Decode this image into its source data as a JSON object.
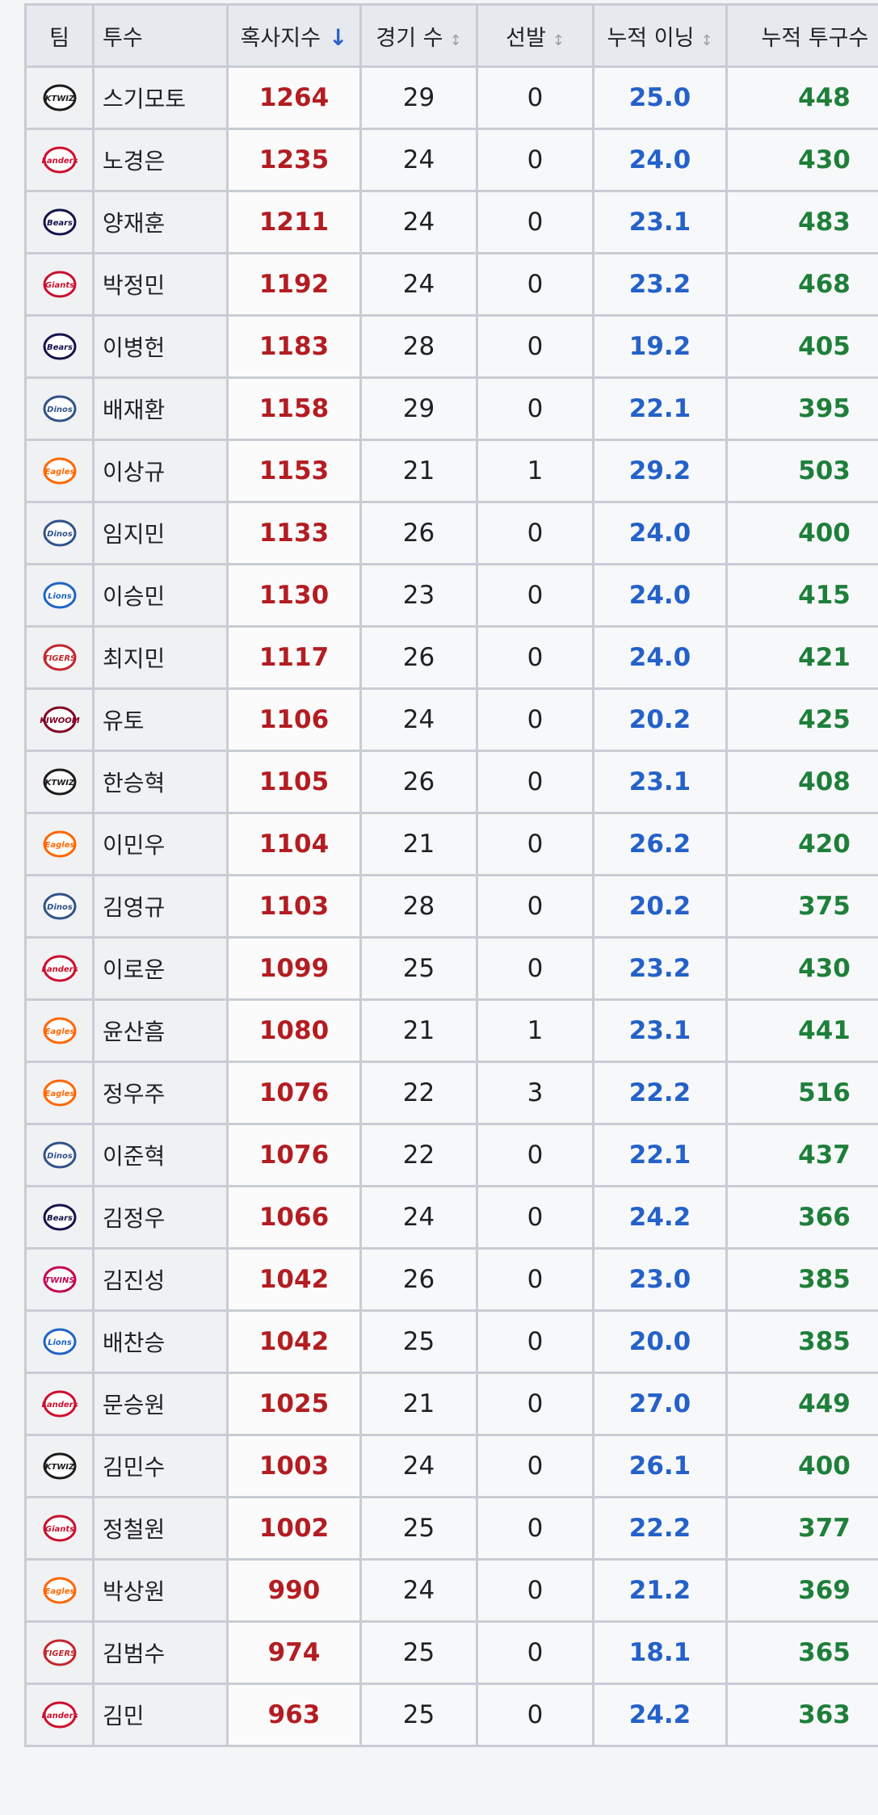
{
  "header": {
    "team": "팀",
    "pitcher": "투수",
    "index": "혹사지수",
    "games": "경기 수",
    "starts": "선발",
    "innings": "누적 이닝",
    "pitches": "누적 투구수",
    "sort_desc_icon": "↓",
    "sort_icon": "↕"
  },
  "teams": {
    "kt": {
      "label": "KTWIZ",
      "color": "#1a1a1a"
    },
    "ssg": {
      "label": "Landers",
      "color": "#ce0e2d"
    },
    "doosan": {
      "label": "Bears",
      "color": "#13134a"
    },
    "lotte": {
      "label": "Giants",
      "color": "#c8102e"
    },
    "nc": {
      "label": "Dinos",
      "color": "#315288"
    },
    "hanwha": {
      "label": "Eagles",
      "color": "#ff6600"
    },
    "samsung": {
      "label": "Lions",
      "color": "#1f64c4"
    },
    "kia": {
      "label": "TIGERS",
      "color": "#c4262d"
    },
    "kiwoom": {
      "label": "KIWOOM",
      "color": "#820024"
    },
    "lg": {
      "label": "TWINS",
      "color": "#c30452"
    }
  },
  "rows": [
    {
      "team": "kt",
      "name": "스기모토",
      "index": "1264",
      "games": "29",
      "starts": "0",
      "innings": "25.0",
      "pitches": "448"
    },
    {
      "team": "ssg",
      "name": "노경은",
      "index": "1235",
      "games": "24",
      "starts": "0",
      "innings": "24.0",
      "pitches": "430"
    },
    {
      "team": "doosan",
      "name": "양재훈",
      "index": "1211",
      "games": "24",
      "starts": "0",
      "innings": "23.1",
      "pitches": "483"
    },
    {
      "team": "lotte",
      "name": "박정민",
      "index": "1192",
      "games": "24",
      "starts": "0",
      "innings": "23.2",
      "pitches": "468"
    },
    {
      "team": "doosan",
      "name": "이병헌",
      "index": "1183",
      "games": "28",
      "starts": "0",
      "innings": "19.2",
      "pitches": "405"
    },
    {
      "team": "nc",
      "name": "배재환",
      "index": "1158",
      "games": "29",
      "starts": "0",
      "innings": "22.1",
      "pitches": "395"
    },
    {
      "team": "hanwha",
      "name": "이상규",
      "index": "1153",
      "games": "21",
      "starts": "1",
      "innings": "29.2",
      "pitches": "503"
    },
    {
      "team": "nc",
      "name": "임지민",
      "index": "1133",
      "games": "26",
      "starts": "0",
      "innings": "24.0",
      "pitches": "400"
    },
    {
      "team": "samsung",
      "name": "이승민",
      "index": "1130",
      "games": "23",
      "starts": "0",
      "innings": "24.0",
      "pitches": "415"
    },
    {
      "team": "kia",
      "name": "최지민",
      "index": "1117",
      "games": "26",
      "starts": "0",
      "innings": "24.0",
      "pitches": "421"
    },
    {
      "team": "kiwoom",
      "name": "유토",
      "index": "1106",
      "games": "24",
      "starts": "0",
      "innings": "20.2",
      "pitches": "425"
    },
    {
      "team": "kt",
      "name": "한승혁",
      "index": "1105",
      "games": "26",
      "starts": "0",
      "innings": "23.1",
      "pitches": "408"
    },
    {
      "team": "hanwha",
      "name": "이민우",
      "index": "1104",
      "games": "21",
      "starts": "0",
      "innings": "26.2",
      "pitches": "420"
    },
    {
      "team": "nc",
      "name": "김영규",
      "index": "1103",
      "games": "28",
      "starts": "0",
      "innings": "20.2",
      "pitches": "375"
    },
    {
      "team": "ssg",
      "name": "이로운",
      "index": "1099",
      "games": "25",
      "starts": "0",
      "innings": "23.2",
      "pitches": "430"
    },
    {
      "team": "hanwha",
      "name": "윤산흠",
      "index": "1080",
      "games": "21",
      "starts": "1",
      "innings": "23.1",
      "pitches": "441"
    },
    {
      "team": "hanwha",
      "name": "정우주",
      "index": "1076",
      "games": "22",
      "starts": "3",
      "innings": "22.2",
      "pitches": "516"
    },
    {
      "team": "nc",
      "name": "이준혁",
      "index": "1076",
      "games": "22",
      "starts": "0",
      "innings": "22.1",
      "pitches": "437"
    },
    {
      "team": "doosan",
      "name": "김정우",
      "index": "1066",
      "games": "24",
      "starts": "0",
      "innings": "24.2",
      "pitches": "366"
    },
    {
      "team": "lg",
      "name": "김진성",
      "index": "1042",
      "games": "26",
      "starts": "0",
      "innings": "23.0",
      "pitches": "385"
    },
    {
      "team": "samsung",
      "name": "배찬승",
      "index": "1042",
      "games": "25",
      "starts": "0",
      "innings": "20.0",
      "pitches": "385"
    },
    {
      "team": "ssg",
      "name": "문승원",
      "index": "1025",
      "games": "21",
      "starts": "0",
      "innings": "27.0",
      "pitches": "449"
    },
    {
      "team": "kt",
      "name": "김민수",
      "index": "1003",
      "games": "24",
      "starts": "0",
      "innings": "26.1",
      "pitches": "400"
    },
    {
      "team": "lotte",
      "name": "정철원",
      "index": "1002",
      "games": "25",
      "starts": "0",
      "innings": "22.2",
      "pitches": "377"
    },
    {
      "team": "hanwha",
      "name": "박상원",
      "index": "990",
      "games": "24",
      "starts": "0",
      "innings": "21.2",
      "pitches": "369"
    },
    {
      "team": "kia",
      "name": "김범수",
      "index": "974",
      "games": "25",
      "starts": "0",
      "innings": "18.1",
      "pitches": "365"
    },
    {
      "team": "ssg",
      "name": "김민",
      "index": "963",
      "games": "25",
      "starts": "0",
      "innings": "24.2",
      "pitches": "363"
    }
  ]
}
